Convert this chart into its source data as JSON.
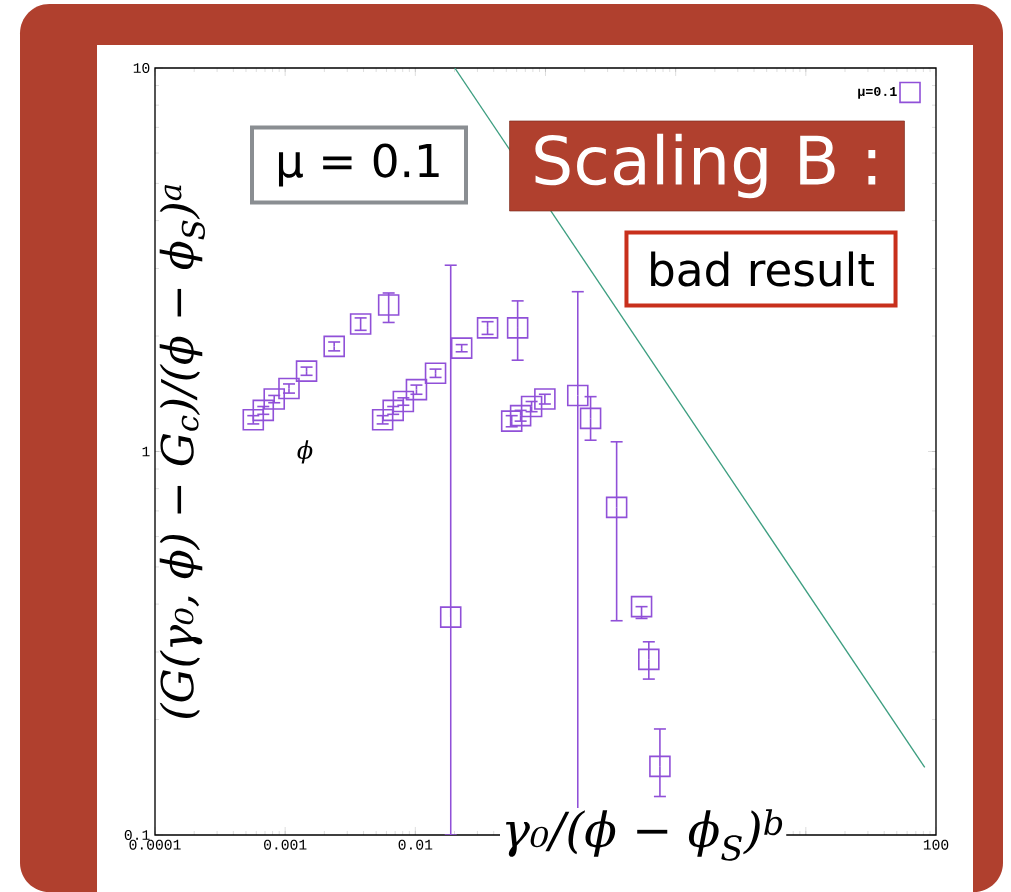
{
  "chart_data": {
    "type": "scatter",
    "xlabel": "γ₀/(ϕ − ϕ$_{S}$)$^{b}$",
    "ylabel": "(G(γ₀, ϕ) − G$_{c}$)/(ϕ − ϕ$_{S}$)$^{a}$",
    "log": "xy",
    "xlim": [
      0.0001,
      100
    ],
    "ylim": [
      0.1,
      10
    ],
    "xticks": [
      0.0001,
      0.001,
      0.01,
      {
        "value": 0.1,
        "label": null
      },
      {
        "value": 1,
        "label": null
      },
      {
        "value": 10,
        "label": null
      },
      100
    ],
    "yticks": [
      0.1,
      1,
      10
    ],
    "legend": "top right",
    "marker": "square",
    "series": [
      {
        "name": "μ=0.1",
        "color": "#9050d8",
        "x": [
          0.000569,
          0.000679,
          0.000824,
          0.00107,
          0.00146,
          0.00238,
          0.0038,
          0.00624,
          0.00561,
          0.00676,
          0.00809,
          0.0102,
          0.0143,
          0.0187,
          0.0227,
          0.0359,
          0.0611,
          0.055,
          0.0644,
          0.0782,
          0.0989,
          0.177,
          0.222,
          0.352,
          0.547,
          0.622,
          0.757
        ],
        "values": [
          1.21,
          1.28,
          1.37,
          1.46,
          1.62,
          1.88,
          2.15,
          2.41,
          1.21,
          1.28,
          1.35,
          1.45,
          1.6,
          0.37,
          1.86,
          2.1,
          2.1,
          1.2,
          1.24,
          1.31,
          1.37,
          1.4,
          1.22,
          0.715,
          0.394,
          0.287,
          0.151
        ],
        "errors": [
          [
            1.18,
            1.24
          ],
          [
            1.25,
            1.31
          ],
          [
            1.34,
            1.4
          ],
          [
            1.42,
            1.5
          ],
          [
            1.58,
            1.66
          ],
          [
            1.83,
            1.93
          ],
          [
            2.07,
            2.23
          ],
          [
            2.17,
            2.59
          ],
          [
            1.18,
            1.24
          ],
          [
            1.25,
            1.31
          ],
          [
            1.32,
            1.38
          ],
          [
            1.41,
            1.49
          ],
          [
            1.56,
            1.64
          ],
          [
            0.1,
            3.06
          ],
          [
            1.82,
            1.9
          ],
          [
            2.02,
            2.18
          ],
          [
            1.73,
            2.47
          ],
          [
            1.16,
            1.24
          ],
          [
            1.2,
            1.28
          ],
          [
            1.27,
            1.35
          ],
          [
            1.33,
            1.41
          ],
          [
            0.1,
            2.61
          ],
          [
            1.07,
            1.39
          ],
          [
            0.362,
            1.06
          ],
          [
            0.367,
            0.394
          ],
          [
            0.255,
            0.319
          ],
          [
            0.126,
            0.189
          ]
        ]
      },
      {
        "color": "#3d9e80",
        "type": "line",
        "marker": "none",
        "x": [
          0.0201,
          82
        ],
        "values": [
          10,
          0.15
        ]
      }
    ],
    "annotations": [
      "μ = 0.1",
      "Scaling B :",
      "bad result",
      "ϕ"
    ]
  }
}
